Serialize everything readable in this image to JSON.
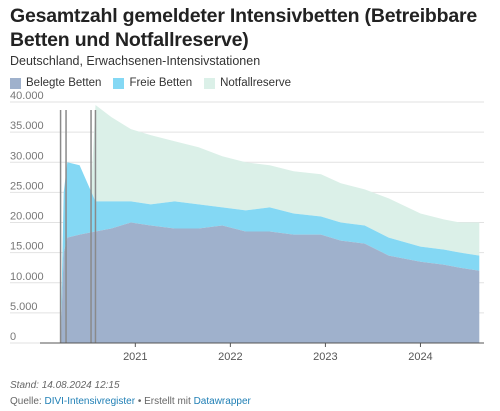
{
  "title": "Gesamtzahl gemeldeter Intensivbetten (Betreibbare Betten und Notfallreserve)",
  "subtitle": "Deutschland, Erwachsenen-Intensivstationen",
  "footer": {
    "stand": "Stand: 14.08.2024 12:15",
    "source_prefix": "Quelle: ",
    "source_link": "DIVI-Intensivregister",
    "separator": " • Erstellt mit ",
    "tool_link": "Datawrapper"
  },
  "colors": {
    "belegt": "#9fb1cc",
    "frei": "#84d8f4",
    "notfall": "#dbf0e8"
  },
  "chart_data": {
    "type": "area",
    "stacked": true,
    "x_unit": "date",
    "x_ticks": [
      "2021",
      "2022",
      "2023",
      "2024"
    ],
    "y_ticks": [
      "0",
      "5.000",
      "10.000",
      "15.000",
      "20.000",
      "25.000",
      "30.000",
      "35.000",
      "40.000"
    ],
    "ylim": [
      0,
      40000
    ],
    "xlim": [
      "2020-01-01",
      "2024-09-01"
    ],
    "grid": true,
    "legend_position": "top-left",
    "vertical_lines": [
      "2020-03-20",
      "2020-04-10",
      "2020-07-15",
      "2020-08-01"
    ],
    "series": [
      {
        "name": "Belegte Betten",
        "points": [
          [
            "2020-03-20",
            0
          ],
          [
            "2020-04-01",
            15000
          ],
          [
            "2020-04-15",
            17500
          ],
          [
            "2020-06-01",
            18000
          ],
          [
            "2020-08-01",
            18500
          ],
          [
            "2020-10-01",
            19000
          ],
          [
            "2020-12-15",
            20000
          ],
          [
            "2021-03-01",
            19500
          ],
          [
            "2021-06-01",
            19000
          ],
          [
            "2021-09-01",
            19000
          ],
          [
            "2021-12-01",
            19500
          ],
          [
            "2022-03-01",
            18500
          ],
          [
            "2022-06-01",
            18500
          ],
          [
            "2022-09-01",
            18000
          ],
          [
            "2022-12-15",
            18000
          ],
          [
            "2023-03-01",
            17000
          ],
          [
            "2023-06-01",
            16500
          ],
          [
            "2023-09-01",
            14500
          ],
          [
            "2024-01-01",
            13500
          ],
          [
            "2024-04-01",
            13000
          ],
          [
            "2024-06-01",
            12500
          ],
          [
            "2024-08-14",
            12000
          ]
        ]
      },
      {
        "name": "Freie Betten",
        "points": [
          [
            "2020-03-20",
            0
          ],
          [
            "2020-04-01",
            10000
          ],
          [
            "2020-04-15",
            12500
          ],
          [
            "2020-06-01",
            11500
          ],
          [
            "2020-08-01",
            5000
          ],
          [
            "2020-10-01",
            4500
          ],
          [
            "2020-12-15",
            3500
          ],
          [
            "2021-03-01",
            3500
          ],
          [
            "2021-06-01",
            4500
          ],
          [
            "2021-09-01",
            4000
          ],
          [
            "2021-12-01",
            3000
          ],
          [
            "2022-03-01",
            3500
          ],
          [
            "2022-06-01",
            4000
          ],
          [
            "2022-09-01",
            3500
          ],
          [
            "2022-12-15",
            3000
          ],
          [
            "2023-03-01",
            3000
          ],
          [
            "2023-06-01",
            3000
          ],
          [
            "2023-09-01",
            3000
          ],
          [
            "2024-01-01",
            2500
          ],
          [
            "2024-04-01",
            2500
          ],
          [
            "2024-06-01",
            2500
          ],
          [
            "2024-08-14",
            2500
          ]
        ]
      },
      {
        "name": "Notfallreserve",
        "points": [
          [
            "2020-03-20",
            0
          ],
          [
            "2020-04-01",
            0
          ],
          [
            "2020-07-15",
            0
          ],
          [
            "2020-08-01",
            16000
          ],
          [
            "2020-10-01",
            14000
          ],
          [
            "2020-12-15",
            12000
          ],
          [
            "2021-03-01",
            11500
          ],
          [
            "2021-06-01",
            10000
          ],
          [
            "2021-09-01",
            9500
          ],
          [
            "2021-12-01",
            8500
          ],
          [
            "2022-03-01",
            8000
          ],
          [
            "2022-06-01",
            7000
          ],
          [
            "2022-09-01",
            7000
          ],
          [
            "2022-12-15",
            7000
          ],
          [
            "2023-03-01",
            6500
          ],
          [
            "2023-06-01",
            6000
          ],
          [
            "2023-09-01",
            6500
          ],
          [
            "2024-01-01",
            5500
          ],
          [
            "2024-04-01",
            5000
          ],
          [
            "2024-06-01",
            5000
          ],
          [
            "2024-08-14",
            5500
          ]
        ]
      }
    ]
  }
}
